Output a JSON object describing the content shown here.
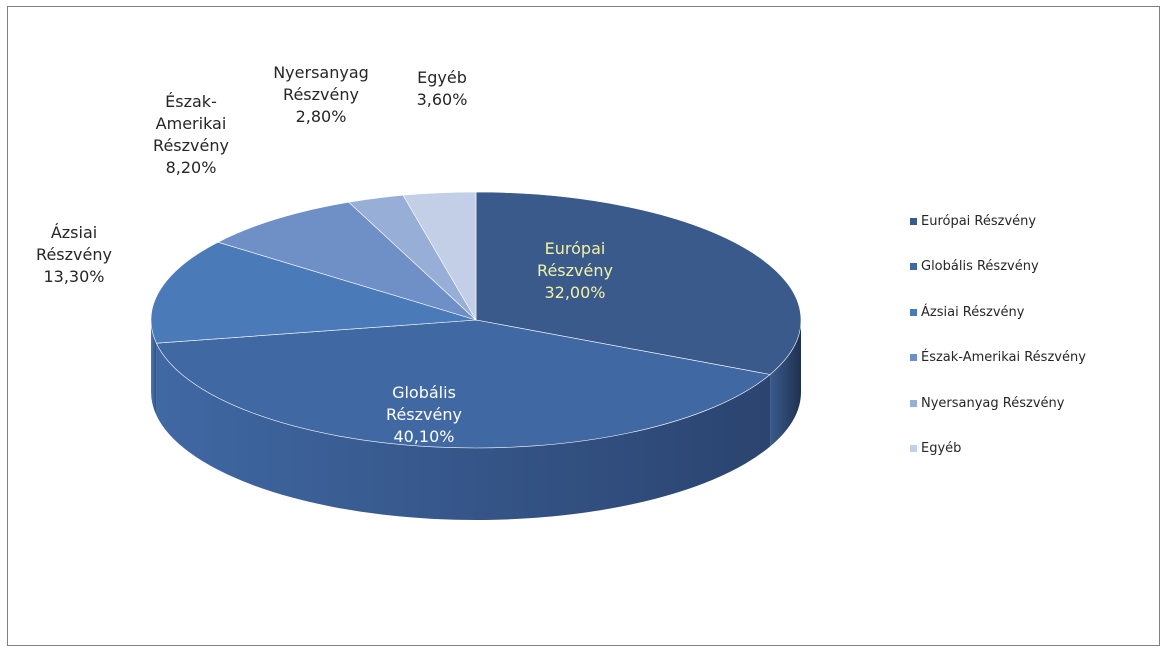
{
  "chart_data": {
    "type": "pie",
    "style": "3d",
    "legend_position": "right",
    "categories": [
      "Európai Részvény",
      "Globális Részvény",
      "Ázsiai Részvény",
      "Észak-Amerikai Részvény",
      "Nyersanyag Részvény",
      "Egyéb"
    ],
    "values": [
      32.0,
      40.1,
      13.3,
      8.2,
      2.8,
      3.6
    ],
    "data_labels": [
      [
        "Európai",
        "Részvény",
        "32,00%"
      ],
      [
        "Globális",
        "Részvény",
        "40,10%"
      ],
      [
        "Ázsiai",
        "Részvény",
        "13,30%"
      ],
      [
        "Észak-",
        "Amerikai",
        "Részvény",
        "8,20%"
      ],
      [
        "Nyersanyag",
        "Részvény",
        "2,80%"
      ],
      [
        "Egyéb",
        "3,60%"
      ]
    ],
    "colors": [
      "#3a5a8c",
      "#4068a3",
      "#4a7ab8",
      "#6f90c6",
      "#97afd6",
      "#c3cfe6"
    ],
    "side_colors": [
      "#1f3150",
      "#2b4470",
      "#2f4f7e",
      "#4a6494",
      "#6a82a8",
      "#8e9cb8"
    ]
  }
}
